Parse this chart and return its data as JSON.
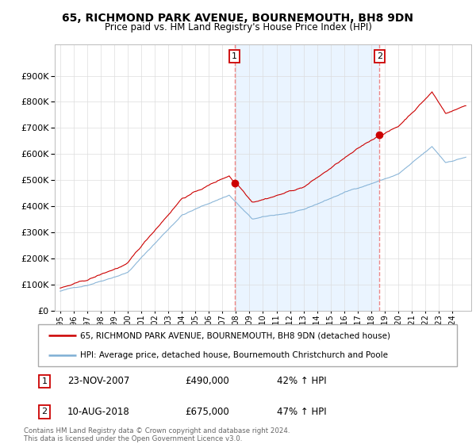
{
  "title1": "65, RICHMOND PARK AVENUE, BOURNEMOUTH, BH8 9DN",
  "title2": "Price paid vs. HM Land Registry's House Price Index (HPI)",
  "background_color": "#ffffff",
  "grid_color": "#dddddd",
  "sale1_year": 2007.9,
  "sale1_price": 490000,
  "sale2_year": 2018.62,
  "sale2_price": 675000,
  "legend_line1": "65, RICHMOND PARK AVENUE, BOURNEMOUTH, BH8 9DN (detached house)",
  "legend_line2": "HPI: Average price, detached house, Bournemouth Christchurch and Poole",
  "table_row1": [
    "1",
    "23-NOV-2007",
    "£490,000",
    "42% ↑ HPI"
  ],
  "table_row2": [
    "2",
    "10-AUG-2018",
    "£675,000",
    "47% ↑ HPI"
  ],
  "footer": "Contains HM Land Registry data © Crown copyright and database right 2024.\nThis data is licensed under the Open Government Licence v3.0.",
  "red_color": "#cc0000",
  "blue_color": "#7eaed4",
  "shade_color": "#ddeeff",
  "dashed_color": "#ee8888",
  "ylim_max": 1000000,
  "yticks": [
    0,
    100000,
    200000,
    300000,
    400000,
    500000,
    600000,
    700000,
    800000,
    900000
  ],
  "xstart": 1995,
  "xend": 2025
}
